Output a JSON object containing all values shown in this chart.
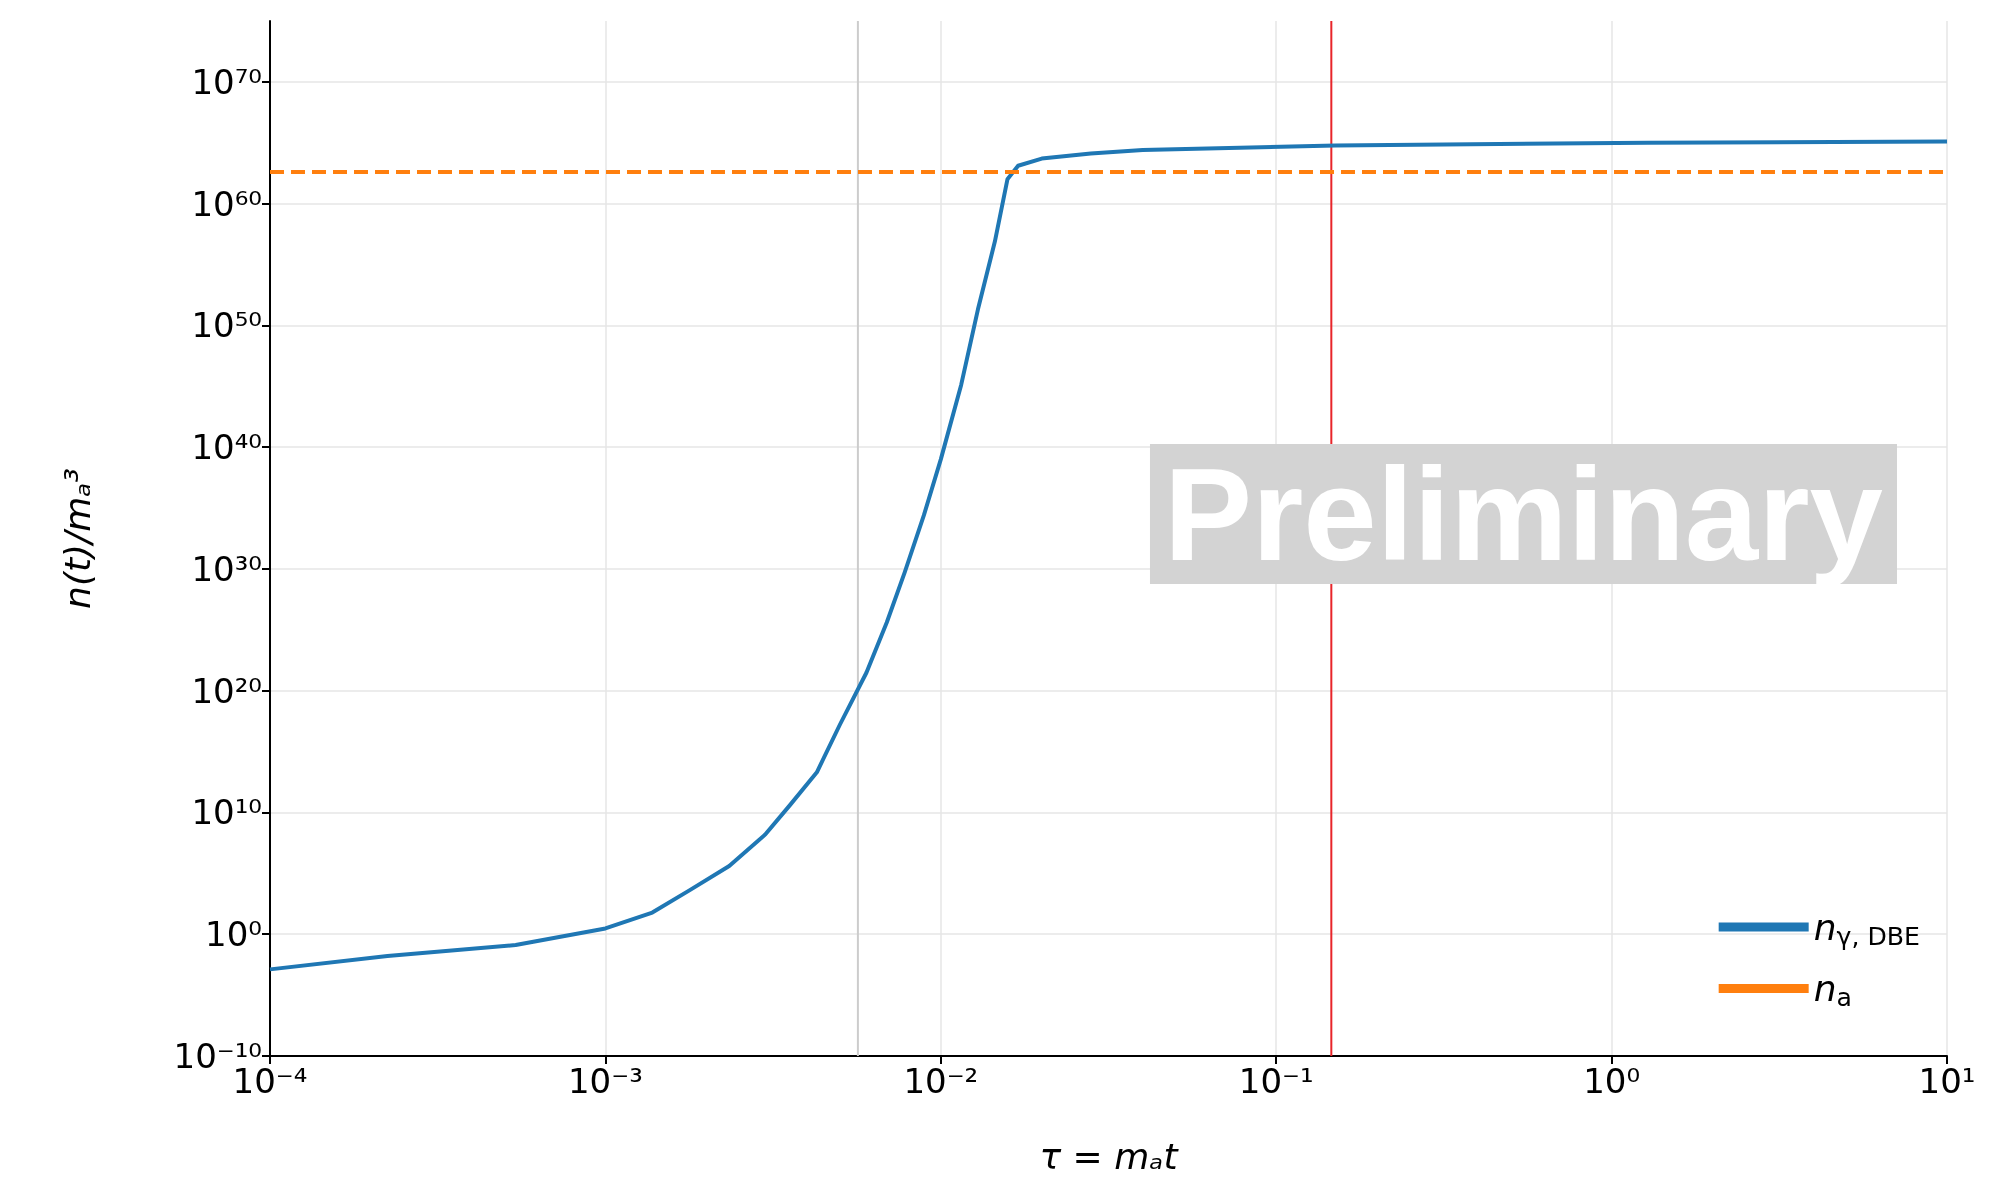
{
  "chart_data": {
    "type": "line",
    "xlabel": "τ = mₐt",
    "ylabel": "n(t)/mₐ³",
    "log": "xy",
    "grid": true,
    "legend": "bottom right",
    "line_style": "solid",
    "marker": "none",
    "xlim": [
      0.0001,
      10
    ],
    "ylim": [
      1e-10,
      1e+75
    ],
    "xticks": [
      {
        "value": 0.0001,
        "label": "10⁻⁴"
      },
      {
        "value": 0.001,
        "label": "10⁻³"
      },
      {
        "value": 0.01,
        "label": "10⁻²"
      },
      {
        "value": 0.1,
        "label": "10⁻¹"
      },
      {
        "value": 1,
        "label": "10⁰"
      },
      {
        "value": 10,
        "label": "10¹"
      }
    ],
    "yticks": [
      {
        "value": 1e-10,
        "label": "10⁻¹⁰"
      },
      {
        "value": 1,
        "label": "10⁰"
      },
      {
        "value": 10000000000.0,
        "label": "10¹⁰"
      },
      {
        "value": 1e+20,
        "label": "10²⁰"
      },
      {
        "value": 1e+30,
        "label": "10³⁰"
      },
      {
        "value": 1e+40,
        "label": "10⁴⁰"
      },
      {
        "value": 1e+50,
        "label": "10⁵⁰"
      },
      {
        "value": 1e+60,
        "label": "10⁶⁰"
      },
      {
        "value": 1e+70,
        "label": "10⁷⁰"
      }
    ],
    "series": [
      {
        "name": "n$_{γ, DBE}$",
        "color": "#1f77b4",
        "x": [
          0.0001,
          0.000224,
          0.00054,
          0.001,
          0.00138,
          0.00178,
          0.00234,
          0.003,
          0.00355,
          0.00427,
          0.005,
          0.006,
          0.0069,
          0.0078,
          0.0089,
          0.01,
          0.0115,
          0.0129,
          0.0145,
          0.0158,
          0.017,
          0.02,
          0.028,
          0.04,
          0.15,
          1.28,
          10
        ],
        "values": [
          0.0013,
          0.016,
          0.13,
          3,
          60,
          4000.0,
          400000.0,
          160000000.0,
          40000000000.0,
          20000000000000.0,
          1.6e+17,
          3e+21,
          4e+25,
          5e+29,
          2.5e+34,
          1e+39,
          1.3e+45,
          2e+51,
          8e+56,
          1e+62,
          1.3e+63,
          5e+63,
          1.3e+64,
          2.5e+64,
          6e+64,
          1e+65,
          1.3e+65
        ]
      },
      {
        "name": "n$_{a}$",
        "color": "#ff7f0e",
        "line_style": "dashed",
        "x": [
          0.0001,
          10
        ],
        "values": [
          4e+62,
          4e+62
        ]
      }
    ],
    "ref_lines": [
      {
        "axis": "x",
        "value": 0.146,
        "color": "#e8252a"
      },
      {
        "axis": "x",
        "value": 0.00566,
        "color": "#cccccc"
      }
    ],
    "annotations": [
      "Preliminary"
    ]
  }
}
